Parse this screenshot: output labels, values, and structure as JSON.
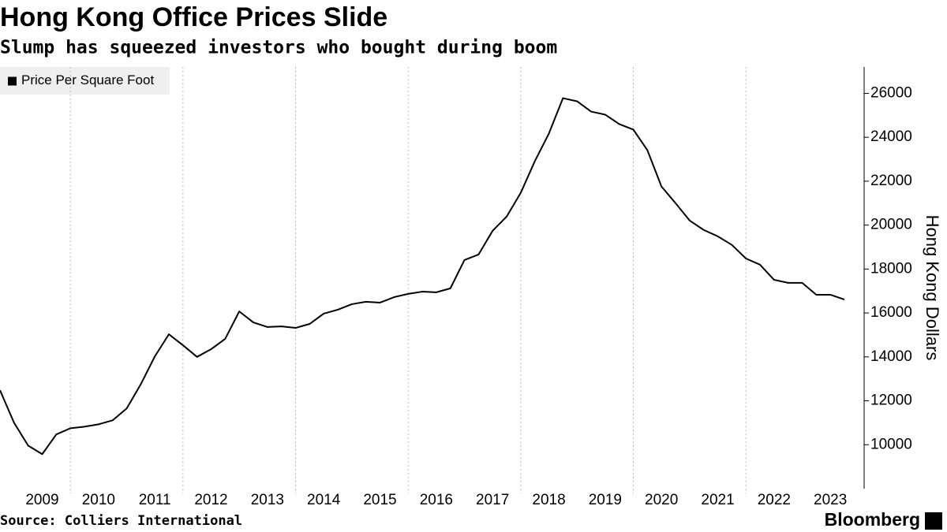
{
  "chart_data": {
    "type": "line",
    "title": "Hong Kong Office Prices Slide",
    "subtitle": "Slump has squeezed investors who bought during boom",
    "y_label": "Hong Kong Dollars",
    "source": "Source: Colliers International",
    "brand": "Bloomberg",
    "legend_position": "top-left",
    "x": [
      2008.75,
      2009,
      2009.25,
      2009.5,
      2009.75,
      2010,
      2010.25,
      2010.5,
      2010.75,
      2011,
      2011.25,
      2011.5,
      2011.75,
      2012,
      2012.25,
      2012.5,
      2012.75,
      2013,
      2013.25,
      2013.5,
      2013.75,
      2014,
      2014.25,
      2014.5,
      2014.75,
      2015,
      2015.25,
      2015.5,
      2015.75,
      2016,
      2016.25,
      2016.5,
      2016.75,
      2017,
      2017.25,
      2017.5,
      2017.75,
      2018,
      2018.25,
      2018.5,
      2018.75,
      2019,
      2019.25,
      2019.5,
      2019.75,
      2020,
      2020.25,
      2020.5,
      2020.75,
      2021,
      2021.25,
      2021.5,
      2021.75,
      2022,
      2022.25,
      2022.5,
      2022.75,
      2023,
      2023.25,
      2023.5,
      2023.75
    ],
    "series": [
      {
        "name": "Price Per Square Foot",
        "color": "#000000",
        "values": [
          12480,
          11000,
          9960,
          9570,
          10470,
          10750,
          10820,
          10930,
          11110,
          11650,
          12750,
          14020,
          15030,
          14530,
          14000,
          14350,
          14820,
          16070,
          15570,
          15360,
          15390,
          15320,
          15500,
          15970,
          16150,
          16400,
          16510,
          16470,
          16720,
          16870,
          16970,
          16940,
          17120,
          18410,
          18660,
          19740,
          20390,
          21470,
          22910,
          24170,
          25780,
          25640,
          25170,
          25030,
          24600,
          24350,
          23410,
          21760,
          21000,
          20210,
          19780,
          19490,
          19100,
          18480,
          18200,
          17510,
          17370,
          17370,
          16830,
          16830,
          16610
        ]
      }
    ],
    "xlim": [
      2008.75,
      2024.1
    ],
    "xticks": [
      {
        "value": 2009.5,
        "label": "2009"
      },
      {
        "value": 2010.5,
        "label": "2010"
      },
      {
        "value": 2011.5,
        "label": "2011"
      },
      {
        "value": 2012.5,
        "label": "2012"
      },
      {
        "value": 2013.5,
        "label": "2013"
      },
      {
        "value": 2014.5,
        "label": "2014"
      },
      {
        "value": 2015.5,
        "label": "2015"
      },
      {
        "value": 2016.5,
        "label": "2016"
      },
      {
        "value": 2017.5,
        "label": "2017"
      },
      {
        "value": 2018.5,
        "label": "2018"
      },
      {
        "value": 2019.5,
        "label": "2019"
      },
      {
        "value": 2020.5,
        "label": "2020"
      },
      {
        "value": 2021.5,
        "label": "2021"
      },
      {
        "value": 2022.5,
        "label": "2022"
      },
      {
        "value": 2023.5,
        "label": "2023"
      }
    ],
    "xgrid": [
      2010,
      2012,
      2014,
      2016,
      2018,
      2020,
      2022
    ],
    "ylim": [
      8000,
      27200
    ],
    "yticks": [
      10000,
      12000,
      14000,
      16000,
      18000,
      20000,
      22000,
      24000,
      26000
    ],
    "y_axis_side": "right"
  }
}
